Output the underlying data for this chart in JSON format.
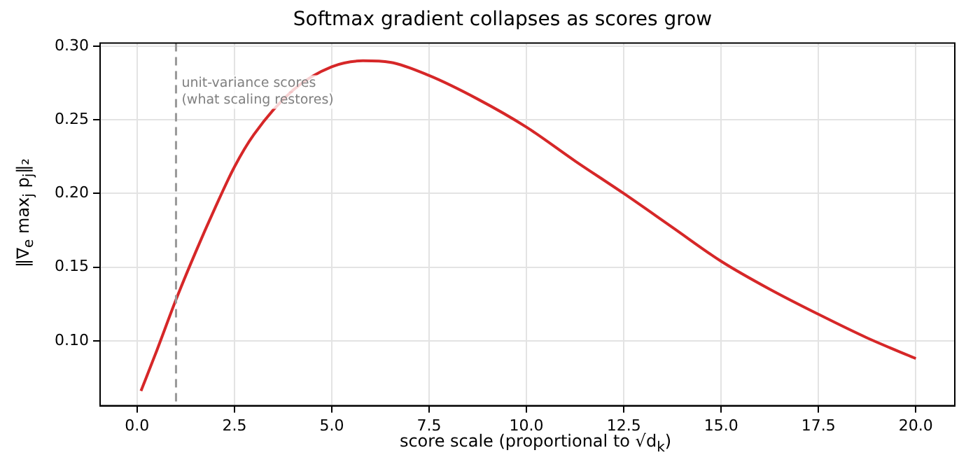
{
  "chart_data": {
    "type": "line",
    "title": "Softmax gradient collapses as scores grow",
    "xlabel": "score scale (proportional to √d$_{k}$)",
    "ylabel": "‖∇$_{e}$ max$_{j}$ p$_{j}$‖₂",
    "x": [
      0.1,
      0.5,
      1,
      1.5,
      2,
      2.5,
      3,
      4,
      5,
      5.8,
      6.5,
      7.5,
      8.75,
      10,
      11.25,
      12.5,
      13.75,
      15,
      16.25,
      17.5,
      18.75,
      20
    ],
    "series": [
      {
        "color": "#d62728",
        "values": [
          0.066,
          0.093,
          0.128,
          0.16,
          0.19,
          0.218,
          0.24,
          0.27,
          0.286,
          0.29,
          0.289,
          0.28,
          0.264,
          0.245,
          0.222,
          0.2,
          0.177,
          0.154,
          0.135,
          0.118,
          0.102,
          0.088
        ]
      }
    ],
    "xlim": [
      -0.95,
      21.0
    ],
    "ylim": [
      0.056,
      0.302
    ],
    "xticks": [
      {
        "value": 0,
        "label": "0.0"
      },
      {
        "value": 2.5,
        "label": "2.5"
      },
      {
        "value": 5,
        "label": "5.0"
      },
      {
        "value": 7.5,
        "label": "7.5"
      },
      {
        "value": 10,
        "label": "10.0"
      },
      {
        "value": 12.5,
        "label": "12.5"
      },
      {
        "value": 15,
        "label": "15.0"
      },
      {
        "value": 17.5,
        "label": "17.5"
      },
      {
        "value": 20,
        "label": "20.0"
      }
    ],
    "yticks": [
      {
        "value": 0.1,
        "label": "0.10"
      },
      {
        "value": 0.15,
        "label": "0.15"
      },
      {
        "value": 0.2,
        "label": "0.20"
      },
      {
        "value": 0.25,
        "label": "0.25"
      },
      {
        "value": 0.3,
        "label": "0.30"
      }
    ],
    "ref_lines": [
      {
        "axis": "x",
        "value": 1,
        "label": "unit-variance scores\n(what scaling restores)",
        "color": "#999999",
        "line_style": "dashed"
      }
    ],
    "grid": true,
    "legend": false,
    "marker": "none",
    "line_style": "solid"
  }
}
